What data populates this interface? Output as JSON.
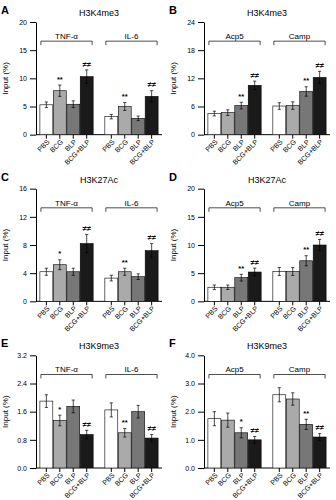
{
  "chart_data": [
    {
      "type": "bar",
      "panel_label": "A",
      "title": "H3K4me3",
      "ylabel": "Input (%)",
      "categories": [
        "PBS",
        "BCG",
        "BLP",
        "BCG+BLP"
      ],
      "ylim": [
        0,
        20
      ],
      "yticks": [
        0,
        5,
        10,
        15,
        20
      ],
      "series": [
        {
          "name": "TNF-α",
          "colors": [
            "white",
            "#aaaaaa",
            "#777777",
            "#1a1a1a"
          ],
          "values": [
            5.3,
            7.8,
            5.4,
            10.3
          ],
          "errors": [
            0.5,
            1.0,
            0.6,
            1.2
          ],
          "significance": [
            null,
            "**",
            null,
            "≠≠"
          ]
        },
        {
          "name": "IL-6",
          "colors": [
            "white",
            "#aaaaaa",
            "#777777",
            "#1a1a1a"
          ],
          "values": [
            3.2,
            5.0,
            2.9,
            6.8
          ],
          "errors": [
            0.4,
            0.7,
            0.4,
            1.0
          ],
          "significance": [
            null,
            "**",
            null,
            "≠≠"
          ]
        }
      ]
    },
    {
      "type": "bar",
      "panel_label": "B",
      "title": "H3K4me3",
      "ylabel": "Input (%)",
      "categories": [
        "PBS",
        "BCG",
        "BLP",
        "BCG+BLP"
      ],
      "ylim": [
        0,
        24
      ],
      "yticks": [
        0,
        6,
        12,
        18,
        24
      ],
      "series": [
        {
          "name": "Acp5",
          "colors": [
            "white",
            "#aaaaaa",
            "#777777",
            "#1a1a1a"
          ],
          "values": [
            4.5,
            4.7,
            6.2,
            10.5
          ],
          "errors": [
            0.5,
            0.6,
            0.7,
            0.9
          ],
          "significance": [
            null,
            null,
            "**",
            "≠≠"
          ]
        },
        {
          "name": "Camp",
          "colors": [
            "white",
            "#aaaaaa",
            "#777777",
            "#1a1a1a"
          ],
          "values": [
            6.1,
            6.2,
            9.2,
            12.2
          ],
          "errors": [
            0.7,
            0.8,
            1.0,
            1.3
          ],
          "significance": [
            null,
            null,
            "**",
            "≠≠"
          ]
        }
      ]
    },
    {
      "type": "bar",
      "panel_label": "C",
      "title": "H3K27Ac",
      "ylabel": "Input (%)",
      "categories": [
        "PBS",
        "BCG",
        "BLP",
        "BCG+BLP"
      ],
      "ylim": [
        0,
        16
      ],
      "yticks": [
        0,
        4,
        8,
        12,
        16
      ],
      "series": [
        {
          "name": "TNF-α",
          "colors": [
            "white",
            "#aaaaaa",
            "#777777",
            "#1a1a1a"
          ],
          "values": [
            4.2,
            5.2,
            4.2,
            8.2
          ],
          "errors": [
            0.5,
            0.7,
            0.5,
            1.3
          ],
          "significance": [
            null,
            "*",
            null,
            "≠≠"
          ]
        },
        {
          "name": "IL-6",
          "colors": [
            "white",
            "#aaaaaa",
            "#777777",
            "#1a1a1a"
          ],
          "values": [
            3.3,
            4.2,
            3.5,
            7.2
          ],
          "errors": [
            0.4,
            0.5,
            0.4,
            1.0
          ],
          "significance": [
            null,
            "**",
            null,
            "≠≠"
          ]
        }
      ]
    },
    {
      "type": "bar",
      "panel_label": "D",
      "title": "H3K27Ac",
      "ylabel": "Input (%)",
      "categories": [
        "PBS",
        "BCG",
        "BLP",
        "BCG+BLP"
      ],
      "ylim": [
        0,
        20
      ],
      "yticks": [
        0,
        5,
        10,
        15,
        20
      ],
      "series": [
        {
          "name": "Acp5",
          "colors": [
            "white",
            "#aaaaaa",
            "#777777",
            "#1a1a1a"
          ],
          "values": [
            2.5,
            2.5,
            4.2,
            5.2
          ],
          "errors": [
            0.4,
            0.4,
            0.6,
            0.7
          ],
          "significance": [
            null,
            null,
            "**",
            "≠≠"
          ]
        },
        {
          "name": "Camp",
          "colors": [
            "white",
            "#aaaaaa",
            "#777777",
            "#1a1a1a"
          ],
          "values": [
            5.3,
            5.3,
            7.2,
            10.0
          ],
          "errors": [
            0.7,
            0.7,
            0.9,
            1.0
          ],
          "significance": [
            null,
            null,
            "**",
            "≠≠"
          ]
        }
      ]
    },
    {
      "type": "bar",
      "panel_label": "E",
      "title": "H3K9me3",
      "ylabel": "Input (%)",
      "categories": [
        "PBS",
        "BCG",
        "BLP",
        "BCG+BLP"
      ],
      "ylim": [
        0,
        3.2
      ],
      "yticks": [
        {
          "value": 0,
          "label": "0.0"
        },
        0.8,
        1.6,
        2.4,
        3.2
      ],
      "series": [
        {
          "name": "TNF-α",
          "colors": [
            "white",
            "#aaaaaa",
            "#777777",
            "#1a1a1a"
          ],
          "values": [
            1.9,
            1.35,
            1.75,
            0.95
          ],
          "errors": [
            0.18,
            0.15,
            0.18,
            0.12
          ],
          "significance": [
            null,
            "*",
            null,
            "≠≠"
          ]
        },
        {
          "name": "IL-6",
          "colors": [
            "white",
            "#aaaaaa",
            "#777777",
            "#1a1a1a"
          ],
          "values": [
            1.65,
            1.0,
            1.6,
            0.85
          ],
          "errors": [
            0.2,
            0.12,
            0.18,
            0.1
          ],
          "significance": [
            null,
            "**",
            null,
            "≠≠"
          ]
        }
      ]
    },
    {
      "type": "bar",
      "panel_label": "F",
      "title": "H3K9me3",
      "ylabel": "Input (%)",
      "categories": [
        "PBS",
        "BCG",
        "BLP",
        "BCG+BLP"
      ],
      "ylim": [
        0,
        4.0
      ],
      "yticks": [
        {
          "value": 0,
          "label": "0.0"
        },
        {
          "value": 1,
          "label": "1.0"
        },
        {
          "value": 2,
          "label": "2.0"
        },
        {
          "value": 3,
          "label": "3.0"
        },
        {
          "value": 4,
          "label": "4.0"
        }
      ],
      "series": [
        {
          "name": "Acp5",
          "colors": [
            "white",
            "#aaaaaa",
            "#777777",
            "#1a1a1a"
          ],
          "values": [
            1.75,
            1.7,
            1.25,
            1.0
          ],
          "errors": [
            0.25,
            0.25,
            0.18,
            0.12
          ],
          "significance": [
            null,
            null,
            "*",
            "≠≠"
          ]
        },
        {
          "name": "Camp",
          "colors": [
            "white",
            "#aaaaaa",
            "#777777",
            "#1a1a1a"
          ],
          "values": [
            2.6,
            2.45,
            1.55,
            1.1
          ],
          "errors": [
            0.25,
            0.22,
            0.18,
            0.12
          ],
          "significance": [
            null,
            null,
            "**",
            "≠≠"
          ]
        }
      ]
    }
  ]
}
